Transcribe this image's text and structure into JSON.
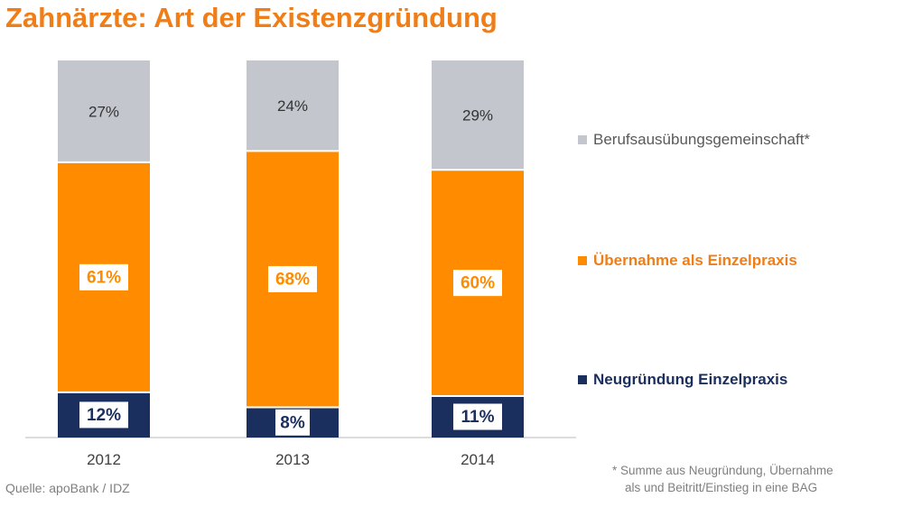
{
  "title": "Zahnärzte: Art der Existenzgründung",
  "chart_data": {
    "type": "bar",
    "stacked": true,
    "categories": [
      "2012",
      "2013",
      "2014"
    ],
    "series": [
      {
        "name": "Neugründung Einzelpraxis",
        "values": [
          12,
          8,
          11
        ],
        "labels": [
          "12%",
          "8%",
          "11%"
        ],
        "color": "#1b2f5e",
        "label_style": "boxed"
      },
      {
        "name": "Übernahme als Einzelpraxis",
        "values": [
          61,
          68,
          60
        ],
        "labels": [
          "61%",
          "68%",
          "60%"
        ],
        "color": "#ff8c00",
        "label_style": "boxed"
      },
      {
        "name": "Berufsausübungsgemeinschaft*",
        "values": [
          27,
          24,
          29
        ],
        "labels": [
          "27%",
          "24%",
          "29%"
        ],
        "color": "#c3c6cd",
        "label_style": "plain"
      }
    ],
    "ylim": [
      0,
      100
    ],
    "unit": "%",
    "grid": false,
    "legend_position": "right"
  },
  "legend": [
    {
      "label": "Berufsausübungsgemeinschaft*",
      "color": "#c3c6cd",
      "text_color": "#595959",
      "bold": false
    },
    {
      "label": "Übernahme als Einzelpraxis",
      "color": "#ff8c00",
      "text_color": "#f07e18",
      "bold": true
    },
    {
      "label": "Neugründung Einzelpraxis",
      "color": "#1b2f5e",
      "text_color": "#1b2f5e",
      "bold": true
    }
  ],
  "source": "Quelle: apoBank / IDZ",
  "footnote": {
    "line1": "* Summe aus Neugründung, Übernahme",
    "line2": "als und Beitritt/Einstieg in eine BAG"
  }
}
